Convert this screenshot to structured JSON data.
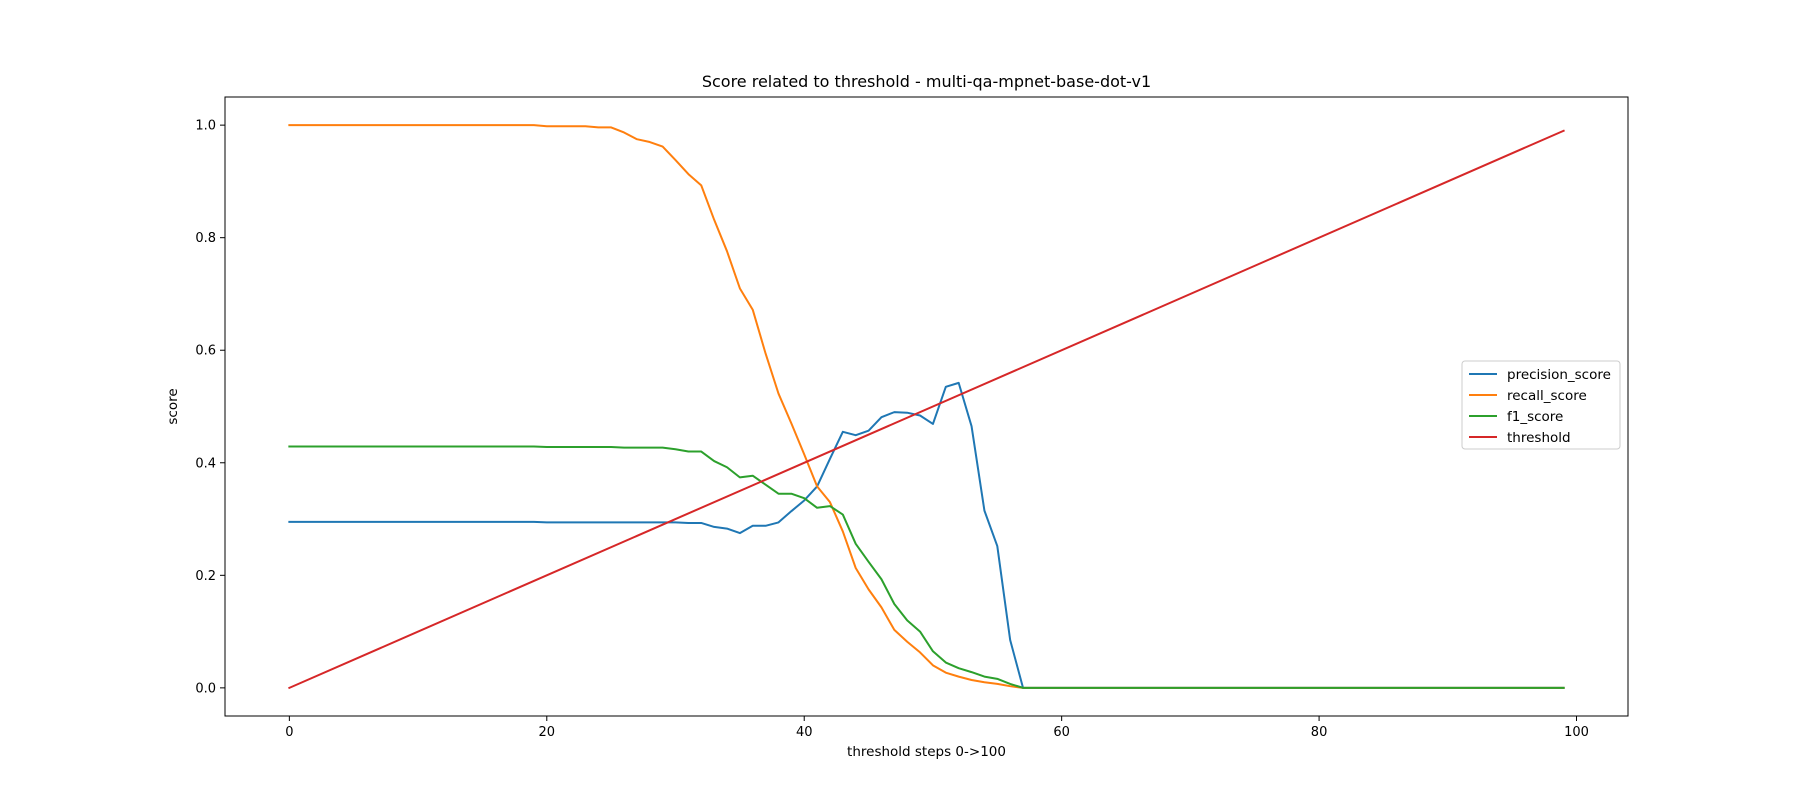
{
  "chart_data": {
    "type": "line",
    "title": "Score related to threshold - multi-qa-mpnet-base-dot-v1",
    "xlabel": "threshold steps 0->100",
    "ylabel": "score",
    "xlim": [
      -5,
      104
    ],
    "ylim": [
      -0.05,
      1.05
    ],
    "xticks": [
      0,
      20,
      40,
      60,
      80,
      100
    ],
    "xtick_labels": [
      "0",
      "20",
      "40",
      "60",
      "80",
      "100"
    ],
    "yticks": [
      0.0,
      0.2,
      0.4,
      0.6,
      0.8,
      1.0
    ],
    "ytick_labels": [
      "0.0",
      "0.2",
      "0.4",
      "0.6",
      "0.8",
      "1.0"
    ],
    "grid": false,
    "legend_position": "center-right",
    "series": [
      {
        "name": "precision_score",
        "color": "#1f77b4",
        "x": [
          0,
          19,
          20,
          25,
          30,
          31,
          32,
          33,
          34,
          35,
          36,
          37,
          38,
          39,
          40,
          41,
          42,
          43,
          44,
          45,
          46,
          47,
          48,
          49,
          50,
          51,
          52,
          53,
          54,
          55,
          56,
          57,
          99
        ],
        "y": [
          0.295,
          0.295,
          0.294,
          0.294,
          0.294,
          0.293,
          0.293,
          0.286,
          0.283,
          0.275,
          0.288,
          0.288,
          0.294,
          0.314,
          0.333,
          0.358,
          0.407,
          0.455,
          0.449,
          0.457,
          0.481,
          0.49,
          0.489,
          0.484,
          0.469,
          0.535,
          0.542,
          0.465,
          0.315,
          0.252,
          0.085,
          0.0,
          0.0
        ]
      },
      {
        "name": "recall_score",
        "color": "#ff7f0e",
        "x": [
          0,
          19,
          20,
          23,
          24,
          25,
          26,
          27,
          28,
          29,
          30,
          31,
          32,
          33,
          34,
          35,
          36,
          37,
          38,
          39,
          40,
          41,
          42,
          43,
          44,
          45,
          46,
          47,
          48,
          49,
          50,
          51,
          52,
          53,
          54,
          55,
          56,
          57,
          99
        ],
        "y": [
          1.0,
          1.0,
          0.998,
          0.998,
          0.996,
          0.996,
          0.987,
          0.975,
          0.97,
          0.962,
          0.938,
          0.913,
          0.893,
          0.832,
          0.776,
          0.71,
          0.672,
          0.594,
          0.523,
          0.47,
          0.415,
          0.358,
          0.33,
          0.278,
          0.213,
          0.175,
          0.143,
          0.103,
          0.082,
          0.063,
          0.04,
          0.027,
          0.02,
          0.014,
          0.01,
          0.007,
          0.003,
          0.0,
          0.0
        ]
      },
      {
        "name": "f1_score",
        "color": "#2ca02c",
        "x": [
          0,
          19,
          20,
          25,
          26,
          27,
          28,
          29,
          30,
          31,
          32,
          33,
          34,
          35,
          36,
          37,
          38,
          39,
          40,
          41,
          42,
          43,
          44,
          45,
          46,
          47,
          48,
          49,
          50,
          51,
          52,
          53,
          54,
          55,
          56,
          57,
          99
        ],
        "y": [
          0.429,
          0.429,
          0.428,
          0.428,
          0.427,
          0.427,
          0.427,
          0.427,
          0.424,
          0.42,
          0.42,
          0.403,
          0.392,
          0.374,
          0.377,
          0.361,
          0.345,
          0.345,
          0.337,
          0.32,
          0.323,
          0.308,
          0.256,
          0.224,
          0.193,
          0.149,
          0.12,
          0.1,
          0.065,
          0.045,
          0.035,
          0.028,
          0.02,
          0.016,
          0.007,
          0.0,
          0.0
        ]
      },
      {
        "name": "threshold",
        "color": "#d62728",
        "x": [
          0,
          99
        ],
        "y": [
          0.0,
          0.99
        ]
      }
    ]
  }
}
